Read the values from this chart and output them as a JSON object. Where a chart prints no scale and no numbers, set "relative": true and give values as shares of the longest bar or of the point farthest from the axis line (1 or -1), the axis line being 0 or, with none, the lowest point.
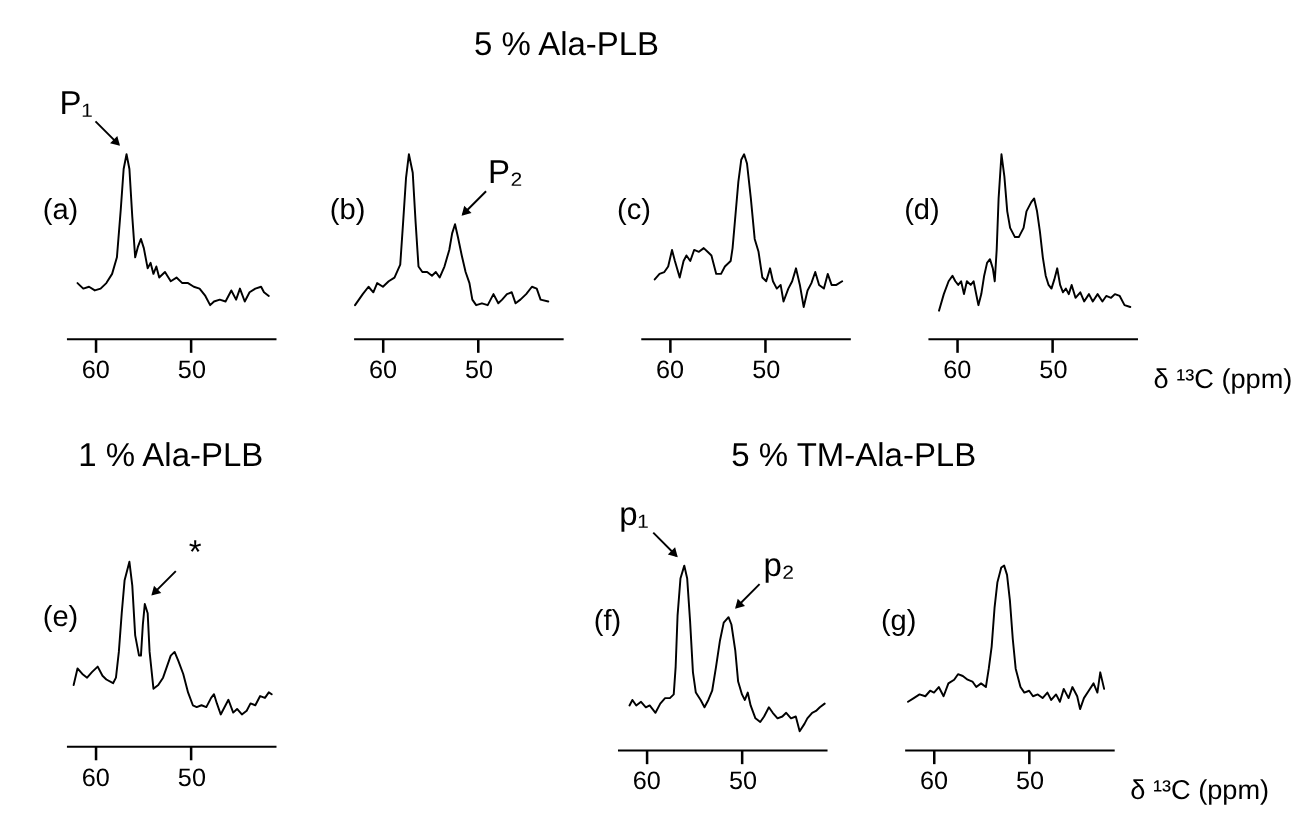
{
  "chart_data": [
    {
      "type": "other",
      "title": "5 % Ala-PLB"
    },
    {
      "type": "line",
      "relative": true,
      "xlim": [
        63,
        41.2
      ],
      "xticks": [
        60,
        50
      ],
      "annotations": [
        "(a)",
        {
          "text": "P₁",
          "x": 56.7,
          "y": 1.0
        }
      ],
      "x": [
        61.8,
        61.2,
        60.6,
        60.0,
        59.4,
        58.8,
        58.2,
        57.7,
        57.3,
        57.0,
        56.7,
        56.4,
        56.1,
        55.8,
        55.5,
        55.2,
        54.9,
        54.5,
        54.2,
        53.9,
        53.6,
        53.3,
        52.7,
        52.1,
        51.5,
        50.9,
        50.3,
        49.7,
        49.1,
        48.5,
        48.0,
        47.6,
        47.0,
        46.4,
        45.8,
        45.3,
        44.9,
        44.4,
        43.9,
        43.3,
        42.7,
        42.4,
        41.9
      ],
      "series": [
        {
          "color": "#000000",
          "values": [
            0.3,
            0.27,
            0.28,
            0.26,
            0.27,
            0.3,
            0.35,
            0.44,
            0.7,
            0.92,
            1.0,
            0.92,
            0.66,
            0.44,
            0.5,
            0.54,
            0.49,
            0.38,
            0.41,
            0.35,
            0.39,
            0.33,
            0.36,
            0.31,
            0.33,
            0.3,
            0.3,
            0.28,
            0.27,
            0.23,
            0.18,
            0.2,
            0.21,
            0.2,
            0.26,
            0.21,
            0.27,
            0.2,
            0.25,
            0.27,
            0.28,
            0.25,
            0.23
          ]
        }
      ]
    },
    {
      "type": "line",
      "relative": true,
      "xlim": [
        63,
        41.2
      ],
      "xticks": [
        60,
        50
      ],
      "annotations": [
        "(b)",
        {
          "text": "P₂",
          "x": 52.4,
          "y": 0.62
        }
      ],
      "x": [
        62.8,
        62.0,
        61.4,
        60.9,
        60.5,
        59.9,
        59.3,
        58.7,
        58.1,
        57.8,
        57.5,
        57.2,
        56.8,
        56.5,
        56.2,
        55.8,
        55.3,
        54.8,
        54.4,
        54.0,
        53.5,
        53.0,
        52.7,
        52.4,
        52.1,
        51.7,
        51.3,
        50.9,
        50.6,
        50.2,
        49.6,
        49.0,
        48.4,
        47.9,
        47.5,
        47.0,
        46.5,
        46.1,
        45.6,
        45.0,
        44.4,
        43.9,
        43.5,
        42.7
      ],
      "series": [
        {
          "color": "#000000",
          "values": [
            0.18,
            0.24,
            0.28,
            0.25,
            0.3,
            0.28,
            0.31,
            0.33,
            0.4,
            0.63,
            0.87,
            1.0,
            0.9,
            0.63,
            0.39,
            0.36,
            0.36,
            0.34,
            0.36,
            0.33,
            0.39,
            0.48,
            0.57,
            0.62,
            0.55,
            0.45,
            0.36,
            0.3,
            0.21,
            0.18,
            0.19,
            0.18,
            0.24,
            0.19,
            0.21,
            0.24,
            0.25,
            0.19,
            0.21,
            0.24,
            0.28,
            0.27,
            0.21,
            0.2
          ]
        }
      ]
    },
    {
      "type": "line",
      "relative": true,
      "xlim": [
        63,
        41.2
      ],
      "xticks": [
        60,
        50
      ],
      "annotations": [
        "(c)"
      ],
      "x": [
        61.5,
        61.0,
        60.5,
        60.1,
        59.7,
        59.4,
        58.9,
        58.5,
        58.2,
        57.8,
        57.4,
        56.9,
        56.4,
        56.0,
        55.6,
        55.1,
        54.6,
        54.2,
        53.6,
        53.4,
        53.1,
        52.8,
        52.5,
        52.2,
        51.9,
        51.5,
        51.1,
        50.7,
        50.3,
        49.9,
        49.5,
        49.2,
        48.8,
        48.4,
        48.1,
        47.6,
        47.2,
        46.8,
        46.4,
        46.0,
        45.6,
        45.2,
        44.8,
        44.4,
        43.9,
        43.5,
        43.1,
        42.6,
        42.0
      ],
      "series": [
        {
          "color": "#000000",
          "values": [
            0.32,
            0.35,
            0.36,
            0.39,
            0.48,
            0.42,
            0.33,
            0.42,
            0.45,
            0.42,
            0.48,
            0.47,
            0.49,
            0.47,
            0.45,
            0.35,
            0.35,
            0.39,
            0.42,
            0.49,
            0.67,
            0.85,
            0.97,
            1.0,
            0.95,
            0.76,
            0.54,
            0.47,
            0.33,
            0.31,
            0.38,
            0.31,
            0.27,
            0.29,
            0.2,
            0.27,
            0.31,
            0.38,
            0.29,
            0.17,
            0.26,
            0.3,
            0.36,
            0.29,
            0.27,
            0.35,
            0.29,
            0.29,
            0.31
          ]
        }
      ]
    },
    {
      "type": "line",
      "relative": true,
      "xlim": [
        63,
        41.2
      ],
      "xticks": [
        60,
        50
      ],
      "xlabel": "δ ¹³C (ppm)",
      "annotations": [
        "(d)"
      ],
      "x": [
        61.8,
        61.3,
        60.8,
        60.4,
        60.1,
        59.8,
        59.5,
        59.2,
        58.9,
        58.5,
        58.2,
        57.7,
        57.4,
        57.1,
        56.8,
        56.5,
        56.2,
        56.0,
        55.8,
        55.6,
        55.3,
        55.0,
        54.7,
        54.4,
        53.9,
        53.5,
        53.0,
        52.7,
        52.2,
        51.9,
        51.6,
        51.3,
        51.0,
        50.7,
        50.4,
        50.1,
        49.8,
        49.5,
        49.2,
        48.9,
        48.6,
        48.3,
        48.0,
        47.6,
        47.1,
        46.7,
        46.2,
        45.8,
        45.3,
        44.8,
        44.4,
        43.9,
        43.5,
        43.0,
        42.5,
        41.9
      ],
      "series": [
        {
          "color": "#000000",
          "values": [
            0.15,
            0.24,
            0.31,
            0.34,
            0.31,
            0.29,
            0.31,
            0.24,
            0.31,
            0.29,
            0.31,
            0.18,
            0.24,
            0.34,
            0.41,
            0.43,
            0.38,
            0.31,
            0.48,
            0.76,
            1.0,
            0.88,
            0.69,
            0.6,
            0.55,
            0.55,
            0.6,
            0.69,
            0.74,
            0.76,
            0.69,
            0.58,
            0.44,
            0.34,
            0.29,
            0.27,
            0.32,
            0.38,
            0.29,
            0.25,
            0.27,
            0.24,
            0.29,
            0.22,
            0.25,
            0.2,
            0.24,
            0.2,
            0.24,
            0.2,
            0.23,
            0.22,
            0.24,
            0.23,
            0.18,
            0.17
          ]
        }
      ]
    },
    {
      "type": "other",
      "title": "1 % Ala-PLB"
    },
    {
      "type": "line",
      "relative": true,
      "xlim": [
        63,
        41.2
      ],
      "xticks": [
        60,
        50
      ],
      "annotations": [
        "(e)",
        {
          "text": "*",
          "x": 54.8,
          "y": 0.77
        }
      ],
      "x": [
        62.2,
        61.8,
        61.3,
        60.8,
        60.3,
        59.7,
        59.2,
        58.8,
        58.1,
        57.8,
        57.5,
        57.2,
        56.9,
        56.4,
        56.1,
        55.8,
        55.4,
        55.2,
        55.0,
        54.8,
        54.5,
        54.3,
        53.9,
        53.4,
        52.9,
        52.5,
        52.1,
        51.7,
        51.3,
        50.8,
        50.3,
        49.8,
        49.4,
        48.9,
        48.4,
        47.9,
        47.6,
        47.3,
        46.9,
        46.4,
        46.1,
        45.6,
        45.2,
        44.7,
        44.2,
        43.8,
        43.3,
        42.8,
        42.3,
        41.9,
        41.6
      ],
      "series": [
        {
          "color": "#000000",
          "values": [
            0.33,
            0.42,
            0.39,
            0.37,
            0.4,
            0.43,
            0.38,
            0.36,
            0.34,
            0.37,
            0.51,
            0.72,
            0.9,
            1.0,
            0.87,
            0.6,
            0.49,
            0.49,
            0.66,
            0.77,
            0.72,
            0.51,
            0.31,
            0.33,
            0.37,
            0.43,
            0.49,
            0.51,
            0.46,
            0.39,
            0.29,
            0.22,
            0.21,
            0.22,
            0.21,
            0.26,
            0.28,
            0.23,
            0.17,
            0.22,
            0.25,
            0.18,
            0.2,
            0.17,
            0.19,
            0.23,
            0.22,
            0.27,
            0.26,
            0.29,
            0.28
          ]
        }
      ]
    },
    {
      "type": "other",
      "title": "5 % TM-Ala-PLB"
    },
    {
      "type": "line",
      "relative": true,
      "xlim": [
        63,
        41.2
      ],
      "xticks": [
        60,
        50
      ],
      "annotations": [
        "(f)",
        {
          "text": "p₁",
          "x": 56.0,
          "y": 1.0
        },
        {
          "text": "p₂",
          "x": 51.4,
          "y": 0.72
        }
      ],
      "x": [
        61.7,
        61.4,
        61.0,
        60.5,
        60.0,
        59.6,
        59.0,
        58.5,
        58.0,
        57.5,
        57.1,
        56.9,
        56.7,
        56.4,
        56.0,
        55.7,
        55.4,
        55.1,
        54.8,
        54.3,
        53.9,
        53.5,
        53.1,
        52.7,
        52.3,
        51.9,
        51.4,
        51.1,
        50.7,
        50.4,
        50.0,
        49.7,
        49.4,
        49.1,
        48.6,
        48.1,
        47.7,
        47.2,
        46.8,
        46.3,
        45.8,
        45.4,
        44.9,
        44.4,
        44.0,
        43.5,
        43.2,
        42.7,
        42.3,
        41.9,
        41.4
      ],
      "series": [
        {
          "color": "#000000",
          "values": [
            0.24,
            0.27,
            0.24,
            0.26,
            0.23,
            0.24,
            0.2,
            0.25,
            0.28,
            0.28,
            0.3,
            0.45,
            0.73,
            0.93,
            1.0,
            0.93,
            0.7,
            0.42,
            0.31,
            0.27,
            0.23,
            0.27,
            0.32,
            0.45,
            0.59,
            0.69,
            0.72,
            0.68,
            0.54,
            0.37,
            0.3,
            0.27,
            0.31,
            0.24,
            0.17,
            0.15,
            0.18,
            0.23,
            0.2,
            0.17,
            0.18,
            0.2,
            0.17,
            0.18,
            0.1,
            0.14,
            0.17,
            0.2,
            0.21,
            0.23,
            0.25
          ]
        }
      ]
    },
    {
      "type": "line",
      "relative": true,
      "xlim": [
        63,
        41.2
      ],
      "xticks": [
        60,
        50
      ],
      "xlabel": "δ ¹³C (ppm)",
      "annotations": [
        "(g)"
      ],
      "x": [
        62.6,
        62.0,
        61.4,
        60.8,
        60.3,
        59.9,
        59.4,
        58.9,
        58.4,
        57.8,
        57.4,
        56.9,
        56.4,
        55.9,
        55.5,
        55.0,
        54.5,
        54.2,
        53.9,
        53.6,
        53.3,
        52.9,
        52.6,
        52.3,
        52.0,
        51.7,
        51.4,
        50.9,
        50.5,
        50.0,
        49.6,
        49.1,
        48.6,
        48.1,
        47.7,
        47.2,
        46.8,
        46.4,
        45.9,
        45.5,
        45.0,
        44.7,
        44.3,
        43.8,
        43.3,
        42.9,
        42.6,
        42.2
      ],
      "series": [
        {
          "color": "#000000",
          "values": [
            0.26,
            0.28,
            0.3,
            0.29,
            0.32,
            0.31,
            0.34,
            0.29,
            0.36,
            0.38,
            0.41,
            0.4,
            0.38,
            0.37,
            0.34,
            0.36,
            0.34,
            0.44,
            0.56,
            0.77,
            0.91,
            0.99,
            1.0,
            0.95,
            0.81,
            0.6,
            0.44,
            0.34,
            0.31,
            0.32,
            0.29,
            0.3,
            0.28,
            0.31,
            0.27,
            0.3,
            0.26,
            0.33,
            0.28,
            0.34,
            0.29,
            0.22,
            0.28,
            0.32,
            0.36,
            0.31,
            0.42,
            0.33
          ]
        }
      ]
    }
  ]
}
